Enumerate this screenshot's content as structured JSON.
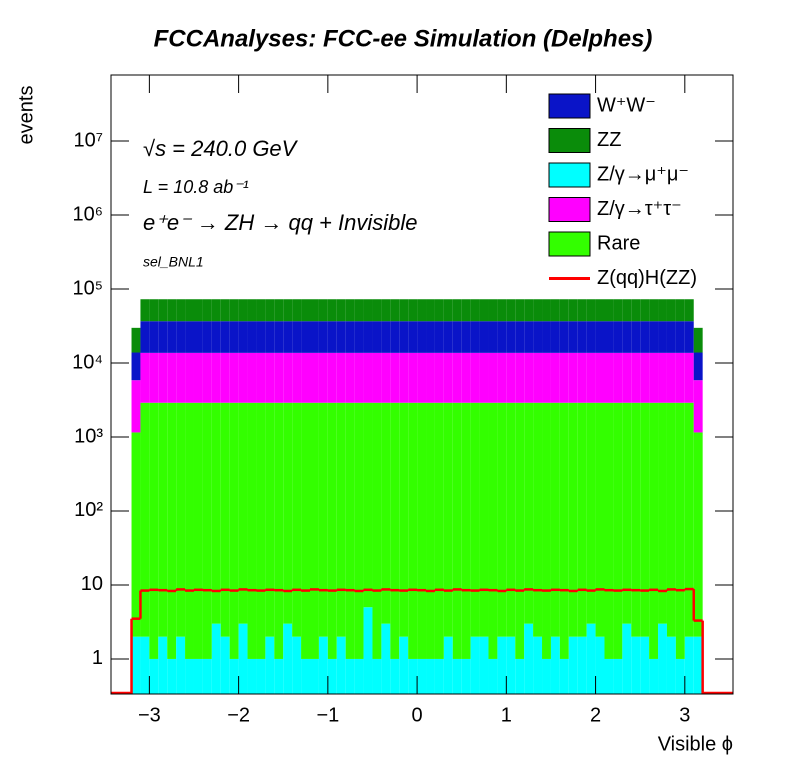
{
  "chart_data": {
    "type": "stacked_histogram",
    "title": "FCCAnalyses: FCC-ee Simulation (Delphes)",
    "x_label": "Visible ϕ",
    "y_label": "events",
    "annotations": [
      "√s = 240.0 GeV",
      "L = 10.8 ab⁻¹",
      "e⁺e⁻ → ZH → qq + Invisible",
      "sel_BNL1"
    ],
    "log_y": true,
    "legend": "upper right",
    "xlim": [
      -3.43,
      3.54
    ],
    "ylim": [
      0.336,
      78000000
    ],
    "xticks": [
      {
        "value": -3,
        "label": "−3"
      },
      {
        "value": -2,
        "label": "−2"
      },
      {
        "value": -1,
        "label": "−1"
      },
      0,
      1,
      2,
      3
    ],
    "yticks": [
      1,
      10,
      {
        "value": 100,
        "label": "10²"
      },
      {
        "value": 1000,
        "label": "10³"
      },
      {
        "value": 10000,
        "label": "10⁴"
      },
      {
        "value": 100000,
        "label": "10⁵"
      },
      {
        "value": 1000000,
        "label": "10⁶"
      },
      {
        "value": 10000000,
        "label": "10⁷"
      }
    ],
    "bins": [
      -3.2,
      -3.1,
      -3.0,
      -2.9,
      -2.8,
      -2.7,
      -2.6,
      -2.5,
      -2.4,
      -2.3,
      -2.2,
      -2.1,
      -2.0,
      -1.9,
      -1.8,
      -1.7,
      -1.6,
      -1.5,
      -1.4,
      -1.3,
      -1.2,
      -1.1,
      -1.0,
      -0.9,
      -0.8,
      -0.7,
      -0.6,
      -0.5,
      -0.4,
      -0.3,
      -0.2,
      -0.1,
      0,
      0.1,
      0.2,
      0.3,
      0.4,
      0.5,
      0.6,
      0.7,
      0.8,
      0.9,
      1.0,
      1.1,
      1.2,
      1.3,
      1.4,
      1.5,
      1.6,
      1.7,
      1.8,
      1.9,
      2.0,
      2.1,
      2.2,
      2.3,
      2.4,
      2.5,
      2.6,
      2.7,
      2.8,
      2.9,
      3.0,
      3.1,
      3.2
    ],
    "series": [
      {
        "name": "Z/γ→μ⁺μ⁻",
        "color": "#00ffff",
        "values": [
          2,
          2,
          1,
          2,
          1,
          2,
          1,
          1,
          1,
          3,
          2,
          1,
          3,
          1,
          1,
          2,
          1,
          3,
          2,
          1,
          1,
          2,
          1,
          2,
          1,
          1,
          5,
          1,
          3,
          1,
          2,
          1,
          1,
          1,
          1,
          2,
          1,
          1,
          2,
          2,
          1,
          2,
          2,
          1,
          3,
          2,
          1,
          2,
          1,
          2,
          2,
          3,
          2,
          1,
          1,
          3,
          2,
          2,
          1,
          3,
          2,
          1,
          2,
          2
        ]
      },
      {
        "name": "Rare",
        "color": "#33ff00",
        "values": [
          1150,
          2900,
          2900,
          2900,
          2900,
          2900,
          2900,
          2900,
          2900,
          2900,
          2900,
          2900,
          2900,
          2900,
          2900,
          2900,
          2900,
          2900,
          2900,
          2900,
          2900,
          2900,
          2900,
          2900,
          2900,
          2900,
          2900,
          2900,
          2900,
          2900,
          2900,
          2900,
          2900,
          2900,
          2900,
          2900,
          2900,
          2900,
          2900,
          2900,
          2900,
          2900,
          2900,
          2900,
          2900,
          2900,
          2900,
          2900,
          2900,
          2900,
          2900,
          2900,
          2900,
          2900,
          2900,
          2900,
          2900,
          2900,
          2900,
          2900,
          2900,
          2900,
          2900,
          1150
        ]
      },
      {
        "name": "Z/γ→τ⁺τ⁻",
        "color": "#ff00ff",
        "values": [
          4700,
          10800,
          10800,
          10800,
          10800,
          10800,
          10800,
          10800,
          10800,
          10800,
          10800,
          10800,
          10800,
          10800,
          10800,
          10800,
          10800,
          10800,
          10800,
          10800,
          10800,
          10800,
          10800,
          10800,
          10800,
          10800,
          10800,
          10800,
          10800,
          10800,
          10800,
          10800,
          10800,
          10800,
          10800,
          10800,
          10800,
          10800,
          10800,
          10800,
          10800,
          10800,
          10800,
          10800,
          10800,
          10800,
          10800,
          10800,
          10800,
          10800,
          10800,
          10800,
          10800,
          10800,
          10800,
          10800,
          10800,
          10800,
          10800,
          10800,
          10800,
          10800,
          10800,
          4700
        ]
      },
      {
        "name": "W⁺W⁻",
        "color": "#0a14c8",
        "values": [
          8000,
          23000,
          23000,
          23000,
          23000,
          23000,
          23000,
          23000,
          23000,
          23000,
          23000,
          23000,
          23000,
          23000,
          23000,
          23000,
          23000,
          23000,
          23000,
          23000,
          23000,
          23000,
          23000,
          23000,
          23000,
          23000,
          23000,
          23000,
          23000,
          23000,
          23000,
          23000,
          23000,
          23000,
          23000,
          23000,
          23000,
          23000,
          23000,
          23000,
          23000,
          23000,
          23000,
          23000,
          23000,
          23000,
          23000,
          23000,
          23000,
          23000,
          23000,
          23000,
          23000,
          23000,
          23000,
          23000,
          23000,
          23000,
          23000,
          23000,
          23000,
          23000,
          23000,
          8000
        ]
      },
      {
        "name": "ZZ",
        "color": "#0a8c0a",
        "values": [
          16000,
          36000,
          36000,
          36000,
          36000,
          36000,
          36000,
          36000,
          36000,
          36000,
          36000,
          36000,
          36000,
          36000,
          36000,
          36000,
          36000,
          36000,
          36000,
          36000,
          36000,
          36000,
          36000,
          36000,
          36000,
          36000,
          36000,
          36000,
          36000,
          36000,
          36000,
          36000,
          36000,
          36000,
          36000,
          36000,
          36000,
          36000,
          36000,
          36000,
          36000,
          36000,
          36000,
          36000,
          36000,
          36000,
          36000,
          36000,
          36000,
          36000,
          36000,
          36000,
          36000,
          36000,
          36000,
          36000,
          36000,
          36000,
          36000,
          36000,
          36000,
          36000,
          36000,
          16000
        ]
      },
      {
        "name": "Z(qq)H(ZZ)",
        "color": "#ff0000",
        "line": true,
        "values": [
          3.5,
          8.4,
          8.6,
          8.5,
          8.3,
          8.7,
          8.4,
          8.6,
          8.5,
          8.3,
          8.6,
          8.4,
          8.7,
          8.5,
          8.4,
          8.6,
          8.5,
          8.3,
          8.6,
          8.4,
          8.7,
          8.5,
          8.4,
          8.6,
          8.5,
          8.3,
          8.6,
          8.4,
          8.7,
          8.5,
          8.4,
          8.6,
          8.5,
          8.3,
          8.6,
          8.4,
          8.7,
          8.5,
          8.4,
          8.6,
          8.5,
          8.3,
          8.6,
          8.4,
          8.7,
          8.5,
          8.4,
          8.6,
          8.5,
          8.3,
          8.6,
          8.4,
          8.7,
          8.5,
          8.4,
          8.6,
          8.5,
          8.4,
          8.6,
          8.3,
          8.7,
          8.5,
          8.8,
          3.3
        ]
      }
    ]
  }
}
